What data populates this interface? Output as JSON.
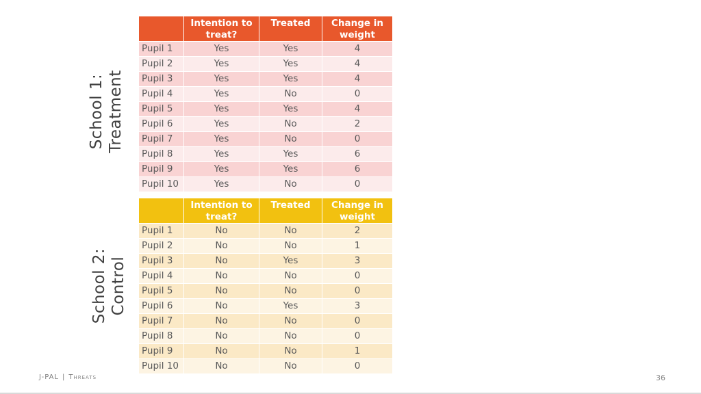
{
  "labels": {
    "school1": [
      "School 1:",
      "Treatment"
    ],
    "school2": [
      "School 2:",
      "Control"
    ]
  },
  "columns": [
    "",
    "Intention to treat?",
    "Treated",
    "Change in weight"
  ],
  "treatment_rows": [
    [
      "Pupil 1",
      "Yes",
      "Yes",
      "4"
    ],
    [
      "Pupil 2",
      "Yes",
      "Yes",
      "4"
    ],
    [
      "Pupil 3",
      "Yes",
      "Yes",
      "4"
    ],
    [
      "Pupil 4",
      "Yes",
      "No",
      "0"
    ],
    [
      "Pupil 5",
      "Yes",
      "Yes",
      "4"
    ],
    [
      "Pupil 6",
      "Yes",
      "No",
      "2"
    ],
    [
      "Pupil 7",
      "Yes",
      "No",
      "0"
    ],
    [
      "Pupil 8",
      "Yes",
      "Yes",
      "6"
    ],
    [
      "Pupil 9",
      "Yes",
      "Yes",
      "6"
    ],
    [
      "Pupil 10",
      "Yes",
      "No",
      "0"
    ]
  ],
  "control_rows": [
    [
      "Pupil 1",
      "No",
      "No",
      "2"
    ],
    [
      "Pupil 2",
      "No",
      "No",
      "1"
    ],
    [
      "Pupil 3",
      "No",
      "Yes",
      "3"
    ],
    [
      "Pupil 4",
      "No",
      "No",
      "0"
    ],
    [
      "Pupil 5",
      "No",
      "No",
      "0"
    ],
    [
      "Pupil 6",
      "No",
      "Yes",
      "3"
    ],
    [
      "Pupil 7",
      "No",
      "No",
      "0"
    ],
    [
      "Pupil 8",
      "No",
      "No",
      "0"
    ],
    [
      "Pupil 9",
      "No",
      "No",
      "1"
    ],
    [
      "Pupil 10",
      "No",
      "No",
      "0"
    ]
  ],
  "colors": {
    "treatment_header": "#e8582c",
    "control_header": "#f2c110"
  },
  "footer": {
    "org": "J-PAL",
    "separator": "|",
    "section": "Threats",
    "page_number": "36"
  }
}
